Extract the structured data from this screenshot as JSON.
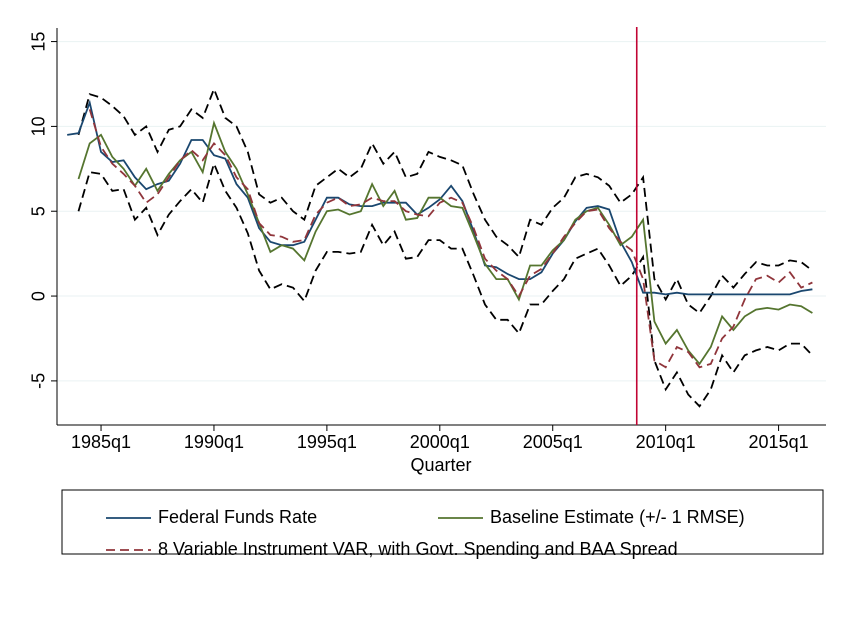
{
  "chart_data": {
    "type": "line",
    "x_label": "Quarter",
    "x": [
      1983.5,
      1984,
      1984.5,
      1985,
      1985.5,
      1986,
      1986.5,
      1987,
      1987.5,
      1988,
      1988.5,
      1989,
      1989.5,
      1990,
      1990.5,
      1991,
      1991.5,
      1992,
      1992.5,
      1993,
      1993.5,
      1994,
      1994.5,
      1995,
      1995.5,
      1996,
      1996.5,
      1997,
      1997.5,
      1998,
      1998.5,
      1999,
      1999.5,
      2000,
      2000.5,
      2001,
      2001.5,
      2002,
      2002.5,
      2003,
      2003.5,
      2004,
      2004.5,
      2005,
      2005.5,
      2006,
      2006.5,
      2007,
      2007.5,
      2008,
      2008.5,
      2009,
      2009.5,
      2010,
      2010.5,
      2011,
      2011.5,
      2012,
      2012.5,
      2013,
      2013.5,
      2014,
      2014.5,
      2015,
      2015.5,
      2016,
      2016.5
    ],
    "series": [
      {
        "name": "Federal Funds Rate",
        "color": "#1a476f",
        "dash": false,
        "values": [
          9.5,
          9.6,
          11.4,
          8.5,
          7.9,
          8.0,
          7.0,
          6.3,
          6.6,
          6.8,
          7.8,
          9.2,
          9.2,
          8.3,
          8.1,
          6.6,
          5.8,
          4.0,
          3.2,
          3.0,
          3.0,
          3.2,
          4.5,
          5.8,
          5.8,
          5.4,
          5.3,
          5.3,
          5.5,
          5.5,
          5.5,
          4.8,
          5.2,
          5.7,
          6.5,
          5.6,
          3.8,
          1.8,
          1.7,
          1.3,
          1.0,
          1.0,
          1.4,
          2.5,
          3.3,
          4.4,
          5.2,
          5.3,
          5.1,
          3.2,
          2.0,
          0.2,
          0.2,
          0.1,
          0.2,
          0.1,
          0.1,
          0.1,
          0.1,
          0.1,
          0.1,
          0.1,
          0.1,
          0.1,
          0.1,
          0.3,
          0.4
        ]
      },
      {
        "name": "Baseline Estimate (+/- 1 RMSE)",
        "color": "#55752f",
        "dash": false,
        "values": [
          null,
          6.9,
          9.0,
          9.5,
          8.2,
          7.5,
          6.5,
          7.5,
          6.2,
          7.2,
          8.0,
          8.5,
          7.3,
          10.2,
          8.5,
          7.5,
          6.0,
          4.3,
          2.6,
          3.0,
          2.8,
          2.1,
          3.8,
          5.0,
          5.1,
          4.8,
          5.0,
          6.6,
          5.3,
          6.2,
          4.5,
          4.6,
          5.8,
          5.8,
          5.3,
          5.2,
          3.6,
          1.9,
          1.0,
          1.0,
          -0.2,
          1.8,
          1.8,
          2.7,
          3.3,
          4.5,
          5.0,
          5.2,
          4.2,
          3.0,
          3.5,
          4.5,
          -1.5,
          -2.8,
          -2.0,
          -3.2,
          -4.0,
          -3.0,
          -1.2,
          -2.0,
          -1.2,
          -0.8,
          -0.7,
          -0.8,
          -0.5,
          -0.6,
          -1.0
        ]
      },
      {
        "name": "8 Variable Instrument VAR, with Govt. Spending and BAA Spread",
        "color": "#90353b",
        "dash": true,
        "values": [
          null,
          null,
          11.0,
          8.8,
          7.8,
          7.2,
          6.5,
          5.5,
          6.0,
          7.0,
          8.0,
          8.6,
          8.0,
          9.0,
          8.3,
          7.0,
          6.3,
          4.3,
          3.6,
          3.5,
          3.2,
          3.3,
          4.8,
          5.5,
          5.8,
          5.3,
          5.4,
          5.8,
          5.6,
          5.6,
          5.0,
          4.8,
          4.7,
          5.5,
          5.8,
          5.5,
          4.0,
          2.2,
          1.5,
          1.0,
          0.0,
          1.2,
          1.6,
          2.5,
          3.5,
          4.3,
          5.0,
          5.1,
          4.0,
          3.2,
          2.7,
          1.0,
          -3.8,
          -4.2,
          -3.0,
          -3.3,
          -4.2,
          -4.0,
          -2.5,
          -1.8,
          -0.2,
          1.0,
          1.2,
          0.8,
          1.4,
          0.5,
          0.8
        ]
      },
      {
        "color": "#000000",
        "dash": true,
        "values": [
          null,
          9.5,
          11.9,
          11.7,
          11.2,
          10.6,
          9.5,
          10.0,
          8.5,
          9.8,
          10.0,
          11.0,
          10.5,
          12.2,
          10.5,
          10.0,
          8.5,
          6.0,
          5.5,
          5.8,
          5.0,
          4.5,
          6.5,
          7.0,
          7.5,
          7.0,
          7.5,
          9.0,
          7.8,
          8.5,
          7.0,
          7.2,
          8.5,
          8.2,
          8.0,
          7.7,
          6.0,
          4.5,
          3.5,
          3.0,
          2.3,
          4.5,
          4.2,
          5.2,
          5.8,
          7.0,
          7.2,
          7.0,
          6.5,
          5.5,
          6.0,
          7.0,
          1.0,
          -0.2,
          1.0,
          -0.5,
          -1.0,
          0.0,
          1.2,
          0.5,
          1.3,
          2.0,
          1.8,
          1.8,
          2.1,
          2.0,
          1.5
        ]
      },
      {
        "color": "#000000",
        "dash": true,
        "values": [
          null,
          5.0,
          7.3,
          7.2,
          6.2,
          6.3,
          4.5,
          5.2,
          3.6,
          4.8,
          5.6,
          6.3,
          5.5,
          7.8,
          6.2,
          5.2,
          3.7,
          1.5,
          0.4,
          0.7,
          0.5,
          -0.3,
          1.5,
          2.6,
          2.6,
          2.5,
          2.6,
          4.2,
          3.0,
          3.8,
          2.2,
          2.3,
          3.3,
          3.3,
          2.8,
          2.8,
          1.2,
          -0.5,
          -1.4,
          -1.4,
          -2.2,
          -0.5,
          -0.5,
          0.3,
          1.0,
          2.2,
          2.5,
          2.8,
          1.8,
          0.6,
          1.2,
          2.3,
          -3.8,
          -5.5,
          -4.5,
          -5.8,
          -6.5,
          -5.5,
          -3.5,
          -4.5,
          -3.5,
          -3.2,
          -3.0,
          -3.2,
          -2.8,
          -2.8,
          -3.5
        ]
      }
    ],
    "xlim": [
      1983.05,
      2017.1
    ],
    "xticks": [
      {
        "value": 1985,
        "label": "1985q1"
      },
      {
        "value": 1990,
        "label": "1990q1"
      },
      {
        "value": 1995,
        "label": "1995q1"
      },
      {
        "value": 2000,
        "label": "2000q1"
      },
      {
        "value": 2005,
        "label": "2005q1"
      },
      {
        "value": 2010,
        "label": "2010q1"
      },
      {
        "value": 2015,
        "label": "2015q1"
      }
    ],
    "ylim": [
      -7.6,
      15.8
    ],
    "yticks": [
      -5,
      0,
      5,
      10,
      15
    ],
    "grid": true,
    "vline": {
      "value": 2008.72,
      "color": "#c10534"
    },
    "legend": "bottom"
  }
}
